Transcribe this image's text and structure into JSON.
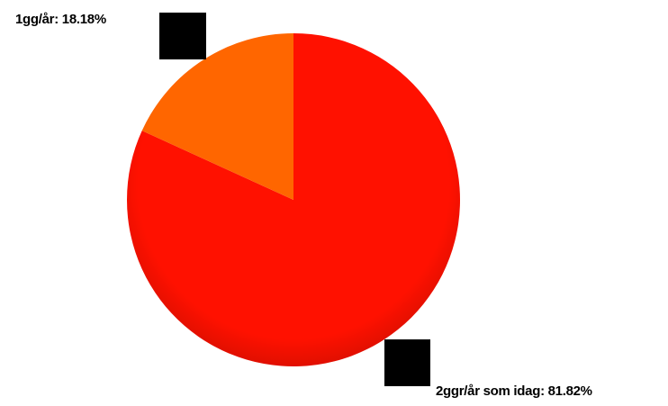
{
  "chart_data": {
    "type": "pie",
    "title": "",
    "slices": [
      {
        "name": "2ggr/år som idag",
        "value": 81.82,
        "label": "2ggr/år som idag: 81.82%",
        "color": "#ff1100"
      },
      {
        "name": "1gg/år",
        "value": 18.18,
        "label": "1gg/år: 18.18%",
        "color": "#ff6600"
      }
    ],
    "legend": "none",
    "start_angle_deg": 0,
    "direction": "clockwise"
  }
}
